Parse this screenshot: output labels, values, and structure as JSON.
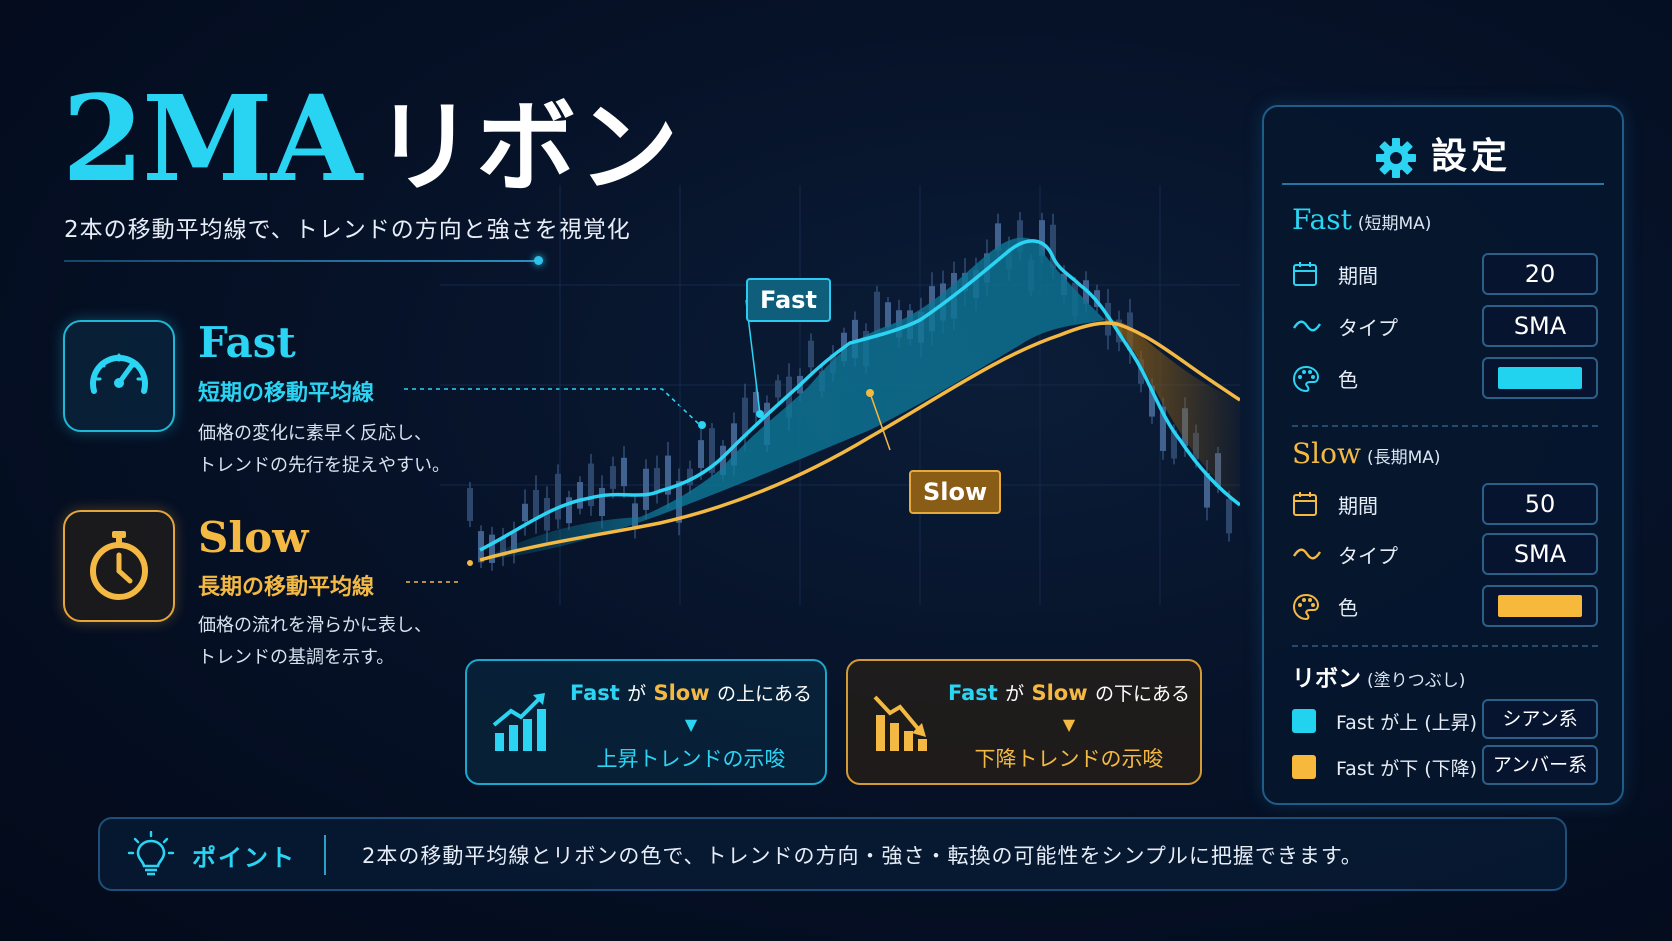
{
  "title": {
    "main": "2MA",
    "suffix": "リボン"
  },
  "subtitle": "2本の移動平均線で、トレンドの方向と強さを視覚化",
  "legend": {
    "fast": {
      "name": "Fast",
      "sub": "短期の移動平均線",
      "desc1": "価格の変化に素早く反応し、",
      "desc2": "トレンドの先行を捉えやすい。",
      "icon": "speedometer-icon"
    },
    "slow": {
      "name": "Slow",
      "sub": "長期の移動平均線",
      "desc1": "価格の流れを滑らかに表し、",
      "desc2": "トレンドの基調を示す。",
      "icon": "stopwatch-icon"
    }
  },
  "chart": {
    "fast_tag": "Fast",
    "slow_tag": "Slow"
  },
  "signals": {
    "up": {
      "fast": "Fast",
      "ga": "が",
      "slow": "Slow",
      "rel": "の上にある",
      "arrow": "▼",
      "result": "上昇トレンドの示唆"
    },
    "down": {
      "fast": "Fast",
      "ga": "が",
      "slow": "Slow",
      "rel": "の下にある",
      "arrow": "▼",
      "result": "下降トレンドの示唆"
    }
  },
  "settings": {
    "title": "設定",
    "fast": {
      "name": "Fast",
      "note": "(短期MA)",
      "period_label": "期間",
      "period": "20",
      "type_label": "タイプ",
      "type": "SMA",
      "color_label": "色",
      "color": "#22d3f0"
    },
    "slow": {
      "name": "Slow",
      "note": "(長期MA)",
      "period_label": "期間",
      "period": "50",
      "type_label": "タイプ",
      "type": "SMA",
      "color_label": "色",
      "color": "#f6b93b"
    },
    "ribbon": {
      "name": "リボン",
      "note": "(塗りつぶし)",
      "up_label": "Fast が上 (上昇)",
      "up_value": "シアン系",
      "down_label": "Fast が下 (下降)",
      "down_value": "アンバー系"
    }
  },
  "point": {
    "label": "ポイント",
    "text": "2本の移動平均線とリボンの色で、トレンドの方向・強さ・転換の可能性をシンプルに把握できます。"
  },
  "colors": {
    "accent_cyan": "#2bd4f3",
    "accent_amber": "#f4b942",
    "background": "#040d1f"
  }
}
